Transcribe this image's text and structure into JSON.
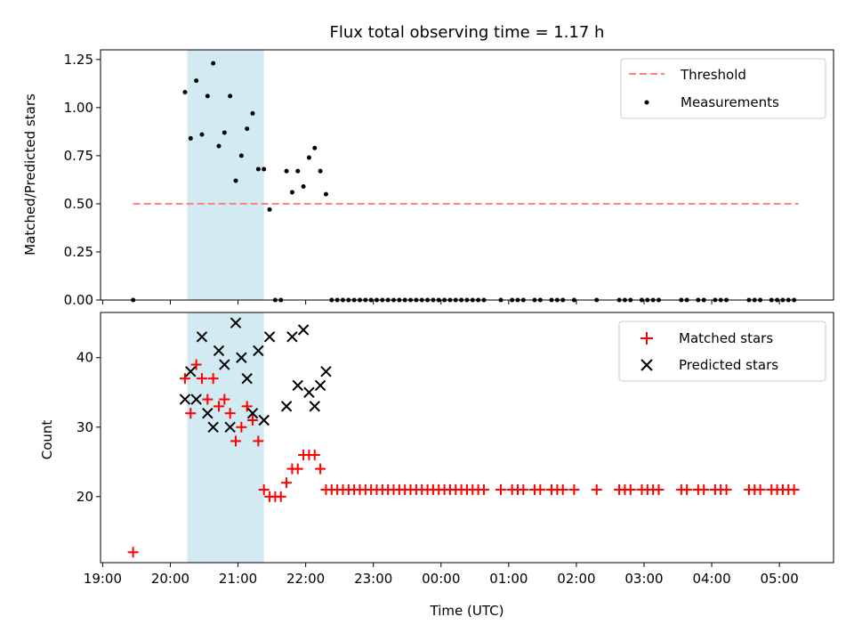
{
  "chart_data": {
    "title": "Flux total observing time = 1.17 h",
    "xlabel": "Time (UTC)",
    "x_ticks": [
      "19:00",
      "20:00",
      "21:00",
      "22:00",
      "23:00",
      "00:00",
      "01:00",
      "02:00",
      "03:00",
      "04:00",
      "05:00"
    ],
    "xlim": [
      "19:00",
      "05:48"
    ],
    "shaded_interval": {
      "start": "20:15",
      "end": "21:23",
      "color": "#add8e6"
    },
    "panels": [
      {
        "type": "scatter",
        "ylabel": "Matched/Predicted stars",
        "ylim": [
          0,
          1.3
        ],
        "y_ticks": [
          "0.00",
          "0.25",
          "0.50",
          "0.75",
          "1.00",
          "1.25"
        ],
        "threshold": {
          "value": 0.5,
          "x": [
            "19:27",
            "05:17"
          ],
          "color": "#ff7f7f",
          "name": "Threshold"
        },
        "series": [
          {
            "name": "Measurements",
            "color": "#000000",
            "points": [
              [
                "19:27",
                0.0
              ],
              [
                "20:13",
                1.08
              ],
              [
                "20:18",
                0.84
              ],
              [
                "20:23",
                1.14
              ],
              [
                "20:28",
                0.86
              ],
              [
                "20:33",
                1.06
              ],
              [
                "20:38",
                1.23
              ],
              [
                "20:43",
                0.8
              ],
              [
                "20:48",
                0.87
              ],
              [
                "20:53",
                1.06
              ],
              [
                "20:58",
                0.62
              ],
              [
                "21:03",
                0.75
              ],
              [
                "21:08",
                0.89
              ],
              [
                "21:13",
                0.97
              ],
              [
                "21:18",
                0.68
              ],
              [
                "21:23",
                0.68
              ],
              [
                "21:28",
                0.47
              ],
              [
                "21:33",
                0.0
              ],
              [
                "21:38",
                0.0
              ],
              [
                "21:43",
                0.67
              ],
              [
                "21:48",
                0.56
              ],
              [
                "21:53",
                0.67
              ],
              [
                "21:58",
                0.59
              ],
              [
                "22:03",
                0.74
              ],
              [
                "22:08",
                0.79
              ],
              [
                "22:13",
                0.67
              ],
              [
                "22:18",
                0.55
              ],
              [
                "22:23",
                0.0
              ],
              [
                "22:28",
                0.0
              ],
              [
                "22:33",
                0.0
              ],
              [
                "22:38",
                0.0
              ],
              [
                "22:43",
                0.0
              ],
              [
                "22:48",
                0.0
              ],
              [
                "22:53",
                0.0
              ],
              [
                "22:58",
                0.0
              ],
              [
                "23:03",
                0.0
              ],
              [
                "23:08",
                0.0
              ],
              [
                "23:13",
                0.0
              ],
              [
                "23:18",
                0.0
              ],
              [
                "23:23",
                0.0
              ],
              [
                "23:28",
                0.0
              ],
              [
                "23:33",
                0.0
              ],
              [
                "23:38",
                0.0
              ],
              [
                "23:43",
                0.0
              ],
              [
                "23:48",
                0.0
              ],
              [
                "23:53",
                0.0
              ],
              [
                "23:58",
                0.0
              ],
              [
                "00:03",
                0.0
              ],
              [
                "00:08",
                0.0
              ],
              [
                "00:13",
                0.0
              ],
              [
                "00:18",
                0.0
              ],
              [
                "00:23",
                0.0
              ],
              [
                "00:28",
                0.0
              ],
              [
                "00:33",
                0.0
              ],
              [
                "00:38",
                0.0
              ],
              [
                "00:53",
                0.0
              ],
              [
                "01:03",
                0.0
              ],
              [
                "01:08",
                0.0
              ],
              [
                "01:13",
                0.0
              ],
              [
                "01:23",
                0.0
              ],
              [
                "01:28",
                0.0
              ],
              [
                "01:38",
                0.0
              ],
              [
                "01:43",
                0.0
              ],
              [
                "01:48",
                0.0
              ],
              [
                "01:58",
                0.0
              ],
              [
                "02:18",
                0.0
              ],
              [
                "02:38",
                0.0
              ],
              [
                "02:43",
                0.0
              ],
              [
                "02:48",
                0.0
              ],
              [
                "02:58",
                0.0
              ],
              [
                "03:03",
                0.0
              ],
              [
                "03:08",
                0.0
              ],
              [
                "03:13",
                0.0
              ],
              [
                "03:33",
                0.0
              ],
              [
                "03:38",
                0.0
              ],
              [
                "03:48",
                0.0
              ],
              [
                "03:53",
                0.0
              ],
              [
                "04:03",
                0.0
              ],
              [
                "04:08",
                0.0
              ],
              [
                "04:13",
                0.0
              ],
              [
                "04:33",
                0.0
              ],
              [
                "04:38",
                0.0
              ],
              [
                "04:43",
                0.0
              ],
              [
                "04:53",
                0.0
              ],
              [
                "04:58",
                0.0
              ],
              [
                "05:03",
                0.0
              ],
              [
                "05:08",
                0.0
              ],
              [
                "05:13",
                0.0
              ]
            ]
          }
        ],
        "legend": {
          "placement": "upper right",
          "entries": [
            "Threshold",
            "Measurements"
          ]
        }
      },
      {
        "type": "scatter",
        "ylabel": "Count",
        "ylim": [
          10.5,
          46.5
        ],
        "y_ticks": [
          "20",
          "30",
          "40"
        ],
        "series": [
          {
            "name": "Matched stars",
            "marker": "plus",
            "color": "#ff0000",
            "points": [
              [
                "19:27",
                12
              ],
              [
                "20:13",
                37
              ],
              [
                "20:18",
                32
              ],
              [
                "20:23",
                39
              ],
              [
                "20:28",
                37
              ],
              [
                "20:33",
                34
              ],
              [
                "20:38",
                37
              ],
              [
                "20:43",
                33
              ],
              [
                "20:48",
                34
              ],
              [
                "20:53",
                32
              ],
              [
                "20:58",
                28
              ],
              [
                "21:03",
                30
              ],
              [
                "21:08",
                33
              ],
              [
                "21:13",
                31
              ],
              [
                "21:18",
                28
              ],
              [
                "21:23",
                21
              ],
              [
                "21:28",
                20
              ],
              [
                "21:33",
                20
              ],
              [
                "21:38",
                20
              ],
              [
                "21:43",
                22
              ],
              [
                "21:48",
                24
              ],
              [
                "21:53",
                24
              ],
              [
                "21:58",
                26
              ],
              [
                "22:03",
                26
              ],
              [
                "22:08",
                26
              ],
              [
                "22:13",
                24
              ],
              [
                "22:18",
                21
              ],
              [
                "22:23",
                21
              ],
              [
                "22:28",
                21
              ],
              [
                "22:33",
                21
              ],
              [
                "22:38",
                21
              ],
              [
                "22:43",
                21
              ],
              [
                "22:48",
                21
              ],
              [
                "22:53",
                21
              ],
              [
                "22:58",
                21
              ],
              [
                "23:03",
                21
              ],
              [
                "23:08",
                21
              ],
              [
                "23:13",
                21
              ],
              [
                "23:18",
                21
              ],
              [
                "23:23",
                21
              ],
              [
                "23:28",
                21
              ],
              [
                "23:33",
                21
              ],
              [
                "23:38",
                21
              ],
              [
                "23:43",
                21
              ],
              [
                "23:48",
                21
              ],
              [
                "23:53",
                21
              ],
              [
                "23:58",
                21
              ],
              [
                "00:03",
                21
              ],
              [
                "00:08",
                21
              ],
              [
                "00:13",
                21
              ],
              [
                "00:18",
                21
              ],
              [
                "00:23",
                21
              ],
              [
                "00:28",
                21
              ],
              [
                "00:33",
                21
              ],
              [
                "00:38",
                21
              ],
              [
                "00:53",
                21
              ],
              [
                "01:03",
                21
              ],
              [
                "01:08",
                21
              ],
              [
                "01:13",
                21
              ],
              [
                "01:23",
                21
              ],
              [
                "01:28",
                21
              ],
              [
                "01:38",
                21
              ],
              [
                "01:43",
                21
              ],
              [
                "01:48",
                21
              ],
              [
                "01:58",
                21
              ],
              [
                "02:18",
                21
              ],
              [
                "02:38",
                21
              ],
              [
                "02:43",
                21
              ],
              [
                "02:48",
                21
              ],
              [
                "02:58",
                21
              ],
              [
                "03:03",
                21
              ],
              [
                "03:08",
                21
              ],
              [
                "03:13",
                21
              ],
              [
                "03:33",
                21
              ],
              [
                "03:38",
                21
              ],
              [
                "03:48",
                21
              ],
              [
                "03:53",
                21
              ],
              [
                "04:03",
                21
              ],
              [
                "04:08",
                21
              ],
              [
                "04:13",
                21
              ],
              [
                "04:33",
                21
              ],
              [
                "04:38",
                21
              ],
              [
                "04:43",
                21
              ],
              [
                "04:53",
                21
              ],
              [
                "04:58",
                21
              ],
              [
                "05:03",
                21
              ],
              [
                "05:08",
                21
              ],
              [
                "05:13",
                21
              ]
            ]
          },
          {
            "name": "Predicted stars",
            "marker": "x",
            "color": "#000000",
            "points": [
              [
                "20:13",
                34
              ],
              [
                "20:18",
                38
              ],
              [
                "20:23",
                34
              ],
              [
                "20:28",
                43
              ],
              [
                "20:33",
                32
              ],
              [
                "20:38",
                30
              ],
              [
                "20:43",
                41
              ],
              [
                "20:48",
                39
              ],
              [
                "20:53",
                30
              ],
              [
                "20:58",
                45
              ],
              [
                "21:03",
                40
              ],
              [
                "21:08",
                37
              ],
              [
                "21:13",
                32
              ],
              [
                "21:18",
                41
              ],
              [
                "21:23",
                31
              ],
              [
                "21:28",
                43
              ],
              [
                "21:43",
                33
              ],
              [
                "21:48",
                43
              ],
              [
                "21:53",
                36
              ],
              [
                "21:58",
                44
              ],
              [
                "22:03",
                35
              ],
              [
                "22:08",
                33
              ],
              [
                "22:13",
                36
              ],
              [
                "22:18",
                38
              ]
            ]
          }
        ],
        "legend": {
          "placement": "upper right",
          "entries": [
            "Matched stars",
            "Predicted stars"
          ]
        }
      }
    ]
  }
}
